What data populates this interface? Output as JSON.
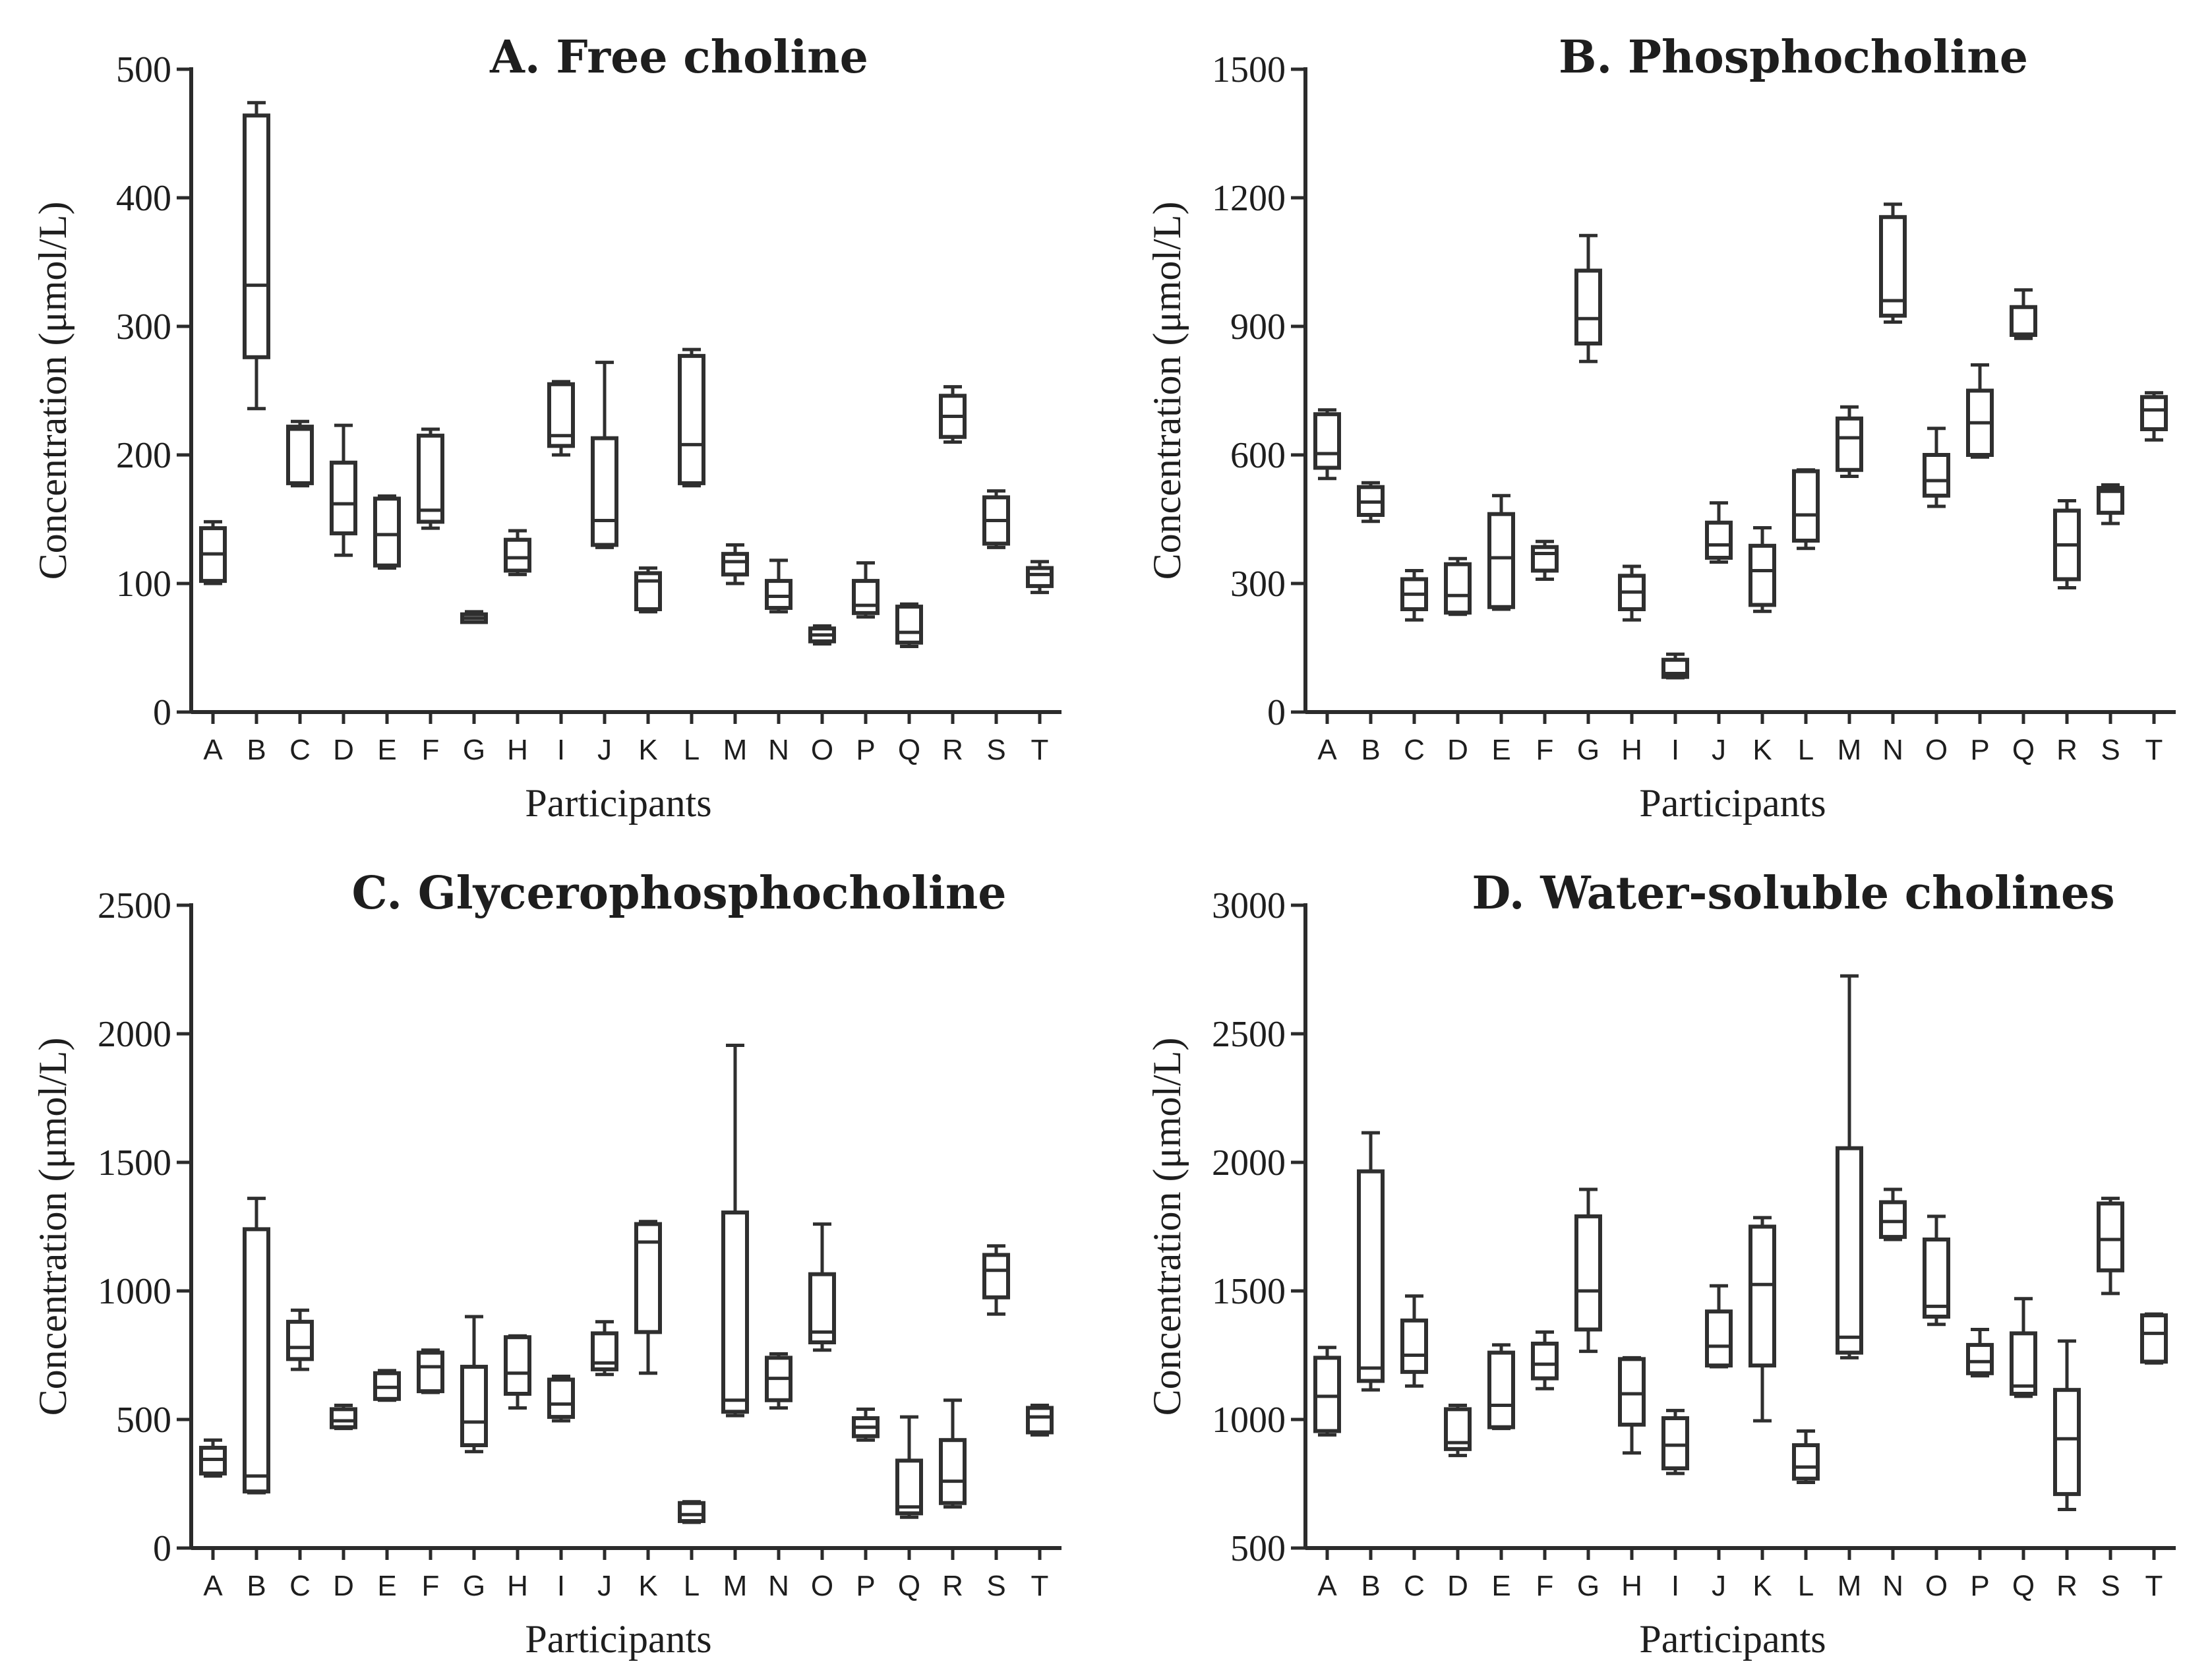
{
  "chart_data": [
    {
      "type": "box",
      "panel": "A",
      "title": "A.  Free choline",
      "xlabel": "Participants",
      "ylabel": "Concentration (μmol/L)",
      "ylim": [
        0,
        500
      ],
      "yticks": [
        0,
        100,
        200,
        300,
        400,
        500
      ],
      "categories": [
        "A",
        "B",
        "C",
        "D",
        "E",
        "F",
        "G",
        "H",
        "I",
        "J",
        "K",
        "L",
        "M",
        "N",
        "O",
        "P",
        "Q",
        "R",
        "S",
        "T"
      ],
      "boxes": [
        {
          "min": 100,
          "q1": 102,
          "median": 123,
          "q3": 143,
          "max": 148
        },
        {
          "min": 236,
          "q1": 276,
          "median": 332,
          "q3": 464,
          "max": 474
        },
        {
          "min": 176,
          "q1": 178,
          "median": 220,
          "q3": 222,
          "max": 226
        },
        {
          "min": 122,
          "q1": 139,
          "median": 162,
          "q3": 194,
          "max": 223
        },
        {
          "min": 112,
          "q1": 114,
          "median": 138,
          "q3": 166,
          "max": 168
        },
        {
          "min": 143,
          "q1": 148,
          "median": 157,
          "q3": 215,
          "max": 220
        },
        {
          "min": 70,
          "q1": 70,
          "median": 73,
          "q3": 76,
          "max": 78
        },
        {
          "min": 107,
          "q1": 110,
          "median": 120,
          "q3": 134,
          "max": 141
        },
        {
          "min": 200,
          "q1": 207,
          "median": 215,
          "q3": 255,
          "max": 257
        },
        {
          "min": 128,
          "q1": 130,
          "median": 149,
          "q3": 213,
          "max": 272
        },
        {
          "min": 78,
          "q1": 80,
          "median": 102,
          "q3": 108,
          "max": 112
        },
        {
          "min": 176,
          "q1": 178,
          "median": 208,
          "q3": 277,
          "max": 282
        },
        {
          "min": 100,
          "q1": 107,
          "median": 117,
          "q3": 123,
          "max": 130
        },
        {
          "min": 78,
          "q1": 81,
          "median": 90,
          "q3": 102,
          "max": 118
        },
        {
          "min": 53,
          "q1": 55,
          "median": 60,
          "q3": 65,
          "max": 67
        },
        {
          "min": 74,
          "q1": 77,
          "median": 83,
          "q3": 102,
          "max": 116
        },
        {
          "min": 51,
          "q1": 54,
          "median": 62,
          "q3": 82,
          "max": 84
        },
        {
          "min": 210,
          "q1": 214,
          "median": 230,
          "q3": 246,
          "max": 253
        },
        {
          "min": 128,
          "q1": 131,
          "median": 149,
          "q3": 167,
          "max": 172
        },
        {
          "min": 93,
          "q1": 98,
          "median": 107,
          "q3": 112,
          "max": 117
        }
      ]
    },
    {
      "type": "box",
      "panel": "B",
      "title": "B.  Phosphocholine",
      "xlabel": "Participants",
      "ylabel": "Concentration (μmol/L)",
      "ylim": [
        0,
        1500
      ],
      "yticks": [
        0,
        300,
        600,
        900,
        1200,
        1500
      ],
      "categories": [
        "A",
        "B",
        "C",
        "D",
        "E",
        "F",
        "G",
        "H",
        "I",
        "J",
        "K",
        "L",
        "M",
        "N",
        "O",
        "P",
        "Q",
        "R",
        "S",
        "T"
      ],
      "boxes": [
        {
          "min": 545,
          "q1": 570,
          "median": 603,
          "q3": 695,
          "max": 705
        },
        {
          "min": 445,
          "q1": 460,
          "median": 490,
          "q3": 525,
          "max": 535
        },
        {
          "min": 215,
          "q1": 240,
          "median": 275,
          "q3": 310,
          "max": 330
        },
        {
          "min": 228,
          "q1": 232,
          "median": 272,
          "q3": 345,
          "max": 358
        },
        {
          "min": 240,
          "q1": 245,
          "median": 360,
          "q3": 462,
          "max": 505
        },
        {
          "min": 310,
          "q1": 330,
          "median": 370,
          "q3": 385,
          "max": 398
        },
        {
          "min": 818,
          "q1": 860,
          "median": 918,
          "q3": 1030,
          "max": 1112
        },
        {
          "min": 215,
          "q1": 240,
          "median": 280,
          "q3": 318,
          "max": 340
        },
        {
          "min": 80,
          "q1": 82,
          "median": 90,
          "q3": 122,
          "max": 135
        },
        {
          "min": 350,
          "q1": 360,
          "median": 390,
          "q3": 442,
          "max": 488
        },
        {
          "min": 235,
          "q1": 250,
          "median": 330,
          "q3": 388,
          "max": 430
        },
        {
          "min": 382,
          "q1": 400,
          "median": 460,
          "q3": 562,
          "max": 565
        },
        {
          "min": 550,
          "q1": 565,
          "median": 640,
          "q3": 685,
          "max": 712
        },
        {
          "min": 910,
          "q1": 925,
          "median": 960,
          "q3": 1155,
          "max": 1185
        },
        {
          "min": 480,
          "q1": 505,
          "median": 540,
          "q3": 600,
          "max": 662
        },
        {
          "min": 595,
          "q1": 600,
          "median": 675,
          "q3": 750,
          "max": 810
        },
        {
          "min": 872,
          "q1": 880,
          "median": 882,
          "q3": 945,
          "max": 985
        },
        {
          "min": 290,
          "q1": 310,
          "median": 390,
          "q3": 470,
          "max": 493
        },
        {
          "min": 440,
          "q1": 465,
          "median": 515,
          "q3": 523,
          "max": 530
        },
        {
          "min": 635,
          "q1": 660,
          "median": 705,
          "q3": 735,
          "max": 745
        }
      ]
    },
    {
      "type": "box",
      "panel": "C",
      "title": "C.  Glycerophosphocholine",
      "xlabel": "Participants",
      "ylabel": "Concentration (μmol/L)",
      "ylim": [
        0,
        2500
      ],
      "yticks": [
        0,
        500,
        1000,
        1500,
        2000,
        2500
      ],
      "categories": [
        "A",
        "B",
        "C",
        "D",
        "E",
        "F",
        "G",
        "H",
        "I",
        "J",
        "K",
        "L",
        "M",
        "N",
        "O",
        "P",
        "Q",
        "R",
        "S",
        "T"
      ],
      "boxes": [
        {
          "min": 280,
          "q1": 290,
          "median": 345,
          "q3": 390,
          "max": 420
        },
        {
          "min": 215,
          "q1": 220,
          "median": 280,
          "q3": 1240,
          "max": 1360
        },
        {
          "min": 695,
          "q1": 735,
          "median": 780,
          "q3": 880,
          "max": 925
        },
        {
          "min": 465,
          "q1": 470,
          "median": 495,
          "q3": 540,
          "max": 555
        },
        {
          "min": 575,
          "q1": 580,
          "median": 625,
          "q3": 680,
          "max": 690
        },
        {
          "min": 605,
          "q1": 610,
          "median": 705,
          "q3": 760,
          "max": 770
        },
        {
          "min": 375,
          "q1": 400,
          "median": 490,
          "q3": 705,
          "max": 900
        },
        {
          "min": 545,
          "q1": 600,
          "median": 680,
          "q3": 820,
          "max": 825
        },
        {
          "min": 495,
          "q1": 510,
          "median": 560,
          "q3": 655,
          "max": 668
        },
        {
          "min": 675,
          "q1": 695,
          "median": 720,
          "q3": 835,
          "max": 880
        },
        {
          "min": 680,
          "q1": 840,
          "median": 1190,
          "q3": 1260,
          "max": 1270
        },
        {
          "min": 100,
          "q1": 105,
          "median": 130,
          "q3": 175,
          "max": 180
        },
        {
          "min": 515,
          "q1": 530,
          "median": 575,
          "q3": 1305,
          "max": 1955
        },
        {
          "min": 545,
          "q1": 575,
          "median": 660,
          "q3": 740,
          "max": 755
        },
        {
          "min": 770,
          "q1": 800,
          "median": 840,
          "q3": 1065,
          "max": 1260
        },
        {
          "min": 420,
          "q1": 435,
          "median": 470,
          "q3": 505,
          "max": 540
        },
        {
          "min": 120,
          "q1": 135,
          "median": 160,
          "q3": 340,
          "max": 510
        },
        {
          "min": 160,
          "q1": 175,
          "median": 260,
          "q3": 420,
          "max": 575
        },
        {
          "min": 910,
          "q1": 975,
          "median": 1080,
          "q3": 1140,
          "max": 1175
        },
        {
          "min": 440,
          "q1": 450,
          "median": 510,
          "q3": 545,
          "max": 555
        }
      ]
    },
    {
      "type": "box",
      "panel": "D",
      "title": "D.  Water-soluble cholines",
      "xlabel": "Participants",
      "ylabel": "Concentration (μmol/L)",
      "ylim": [
        500,
        3000
      ],
      "yticks": [
        500,
        1000,
        1500,
        2000,
        2500,
        3000
      ],
      "categories": [
        "A",
        "B",
        "C",
        "D",
        "E",
        "F",
        "G",
        "H",
        "I",
        "J",
        "K",
        "L",
        "M",
        "N",
        "O",
        "P",
        "Q",
        "R",
        "S",
        "T"
      ],
      "boxes": [
        {
          "min": 940,
          "q1": 955,
          "median": 1090,
          "q3": 1240,
          "max": 1280
        },
        {
          "min": 1115,
          "q1": 1150,
          "median": 1200,
          "q3": 1965,
          "max": 2115
        },
        {
          "min": 1130,
          "q1": 1185,
          "median": 1250,
          "q3": 1385,
          "max": 1480
        },
        {
          "min": 860,
          "q1": 885,
          "median": 910,
          "q3": 1040,
          "max": 1055
        },
        {
          "min": 965,
          "q1": 970,
          "median": 1055,
          "q3": 1260,
          "max": 1290
        },
        {
          "min": 1120,
          "q1": 1160,
          "median": 1215,
          "q3": 1295,
          "max": 1340
        },
        {
          "min": 1265,
          "q1": 1350,
          "median": 1500,
          "q3": 1790,
          "max": 1895
        },
        {
          "min": 870,
          "q1": 980,
          "median": 1100,
          "q3": 1235,
          "max": 1240
        },
        {
          "min": 790,
          "q1": 810,
          "median": 900,
          "q3": 1005,
          "max": 1035
        },
        {
          "min": 1205,
          "q1": 1210,
          "median": 1285,
          "q3": 1420,
          "max": 1520
        },
        {
          "min": 995,
          "q1": 1210,
          "median": 1525,
          "q3": 1750,
          "max": 1785
        },
        {
          "min": 755,
          "q1": 770,
          "median": 815,
          "q3": 900,
          "max": 955
        },
        {
          "min": 1240,
          "q1": 1260,
          "median": 1320,
          "q3": 2055,
          "max": 2725
        },
        {
          "min": 1700,
          "q1": 1710,
          "median": 1770,
          "q3": 1845,
          "max": 1895
        },
        {
          "min": 1370,
          "q1": 1400,
          "median": 1440,
          "q3": 1700,
          "max": 1790
        },
        {
          "min": 1170,
          "q1": 1180,
          "median": 1225,
          "q3": 1290,
          "max": 1350
        },
        {
          "min": 1090,
          "q1": 1100,
          "median": 1130,
          "q3": 1335,
          "max": 1470
        },
        {
          "min": 650,
          "q1": 710,
          "median": 925,
          "q3": 1115,
          "max": 1305
        },
        {
          "min": 1490,
          "q1": 1580,
          "median": 1700,
          "q3": 1840,
          "max": 1860
        },
        {
          "min": 1220,
          "q1": 1225,
          "median": 1335,
          "q3": 1405,
          "max": 1410
        }
      ]
    }
  ]
}
